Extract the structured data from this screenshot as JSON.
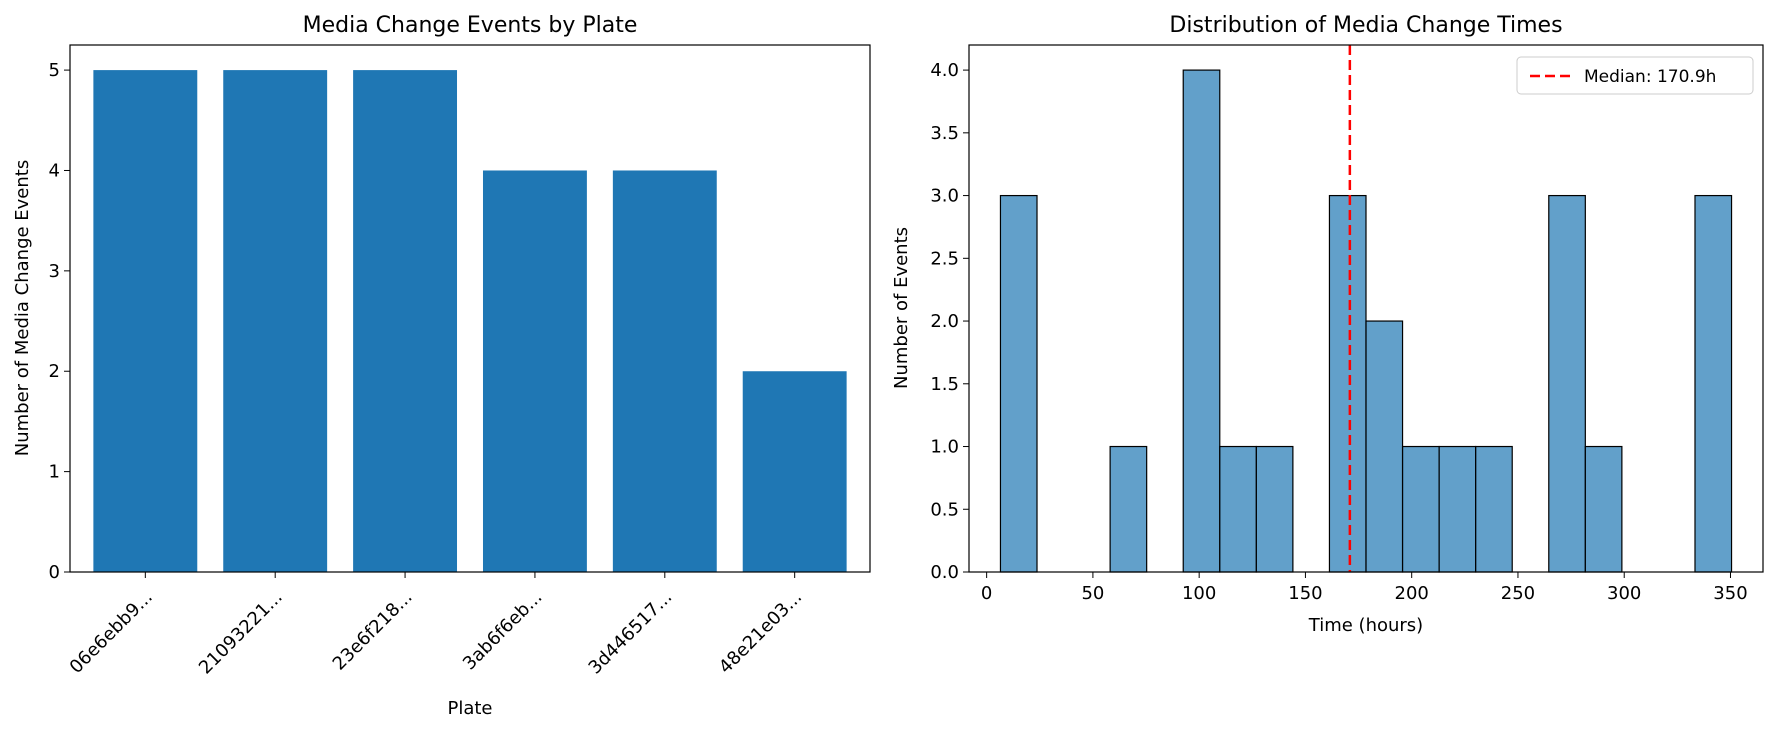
{
  "chart_data": [
    {
      "type": "bar",
      "title": "Media Change Events by Plate",
      "xlabel": "Plate",
      "ylabel": "Number of Media Change Events",
      "categories": [
        "06e6ebb9...",
        "21093221...",
        "23e6f218...",
        "3ab6f6eb...",
        "3d446517...",
        "48e21e03..."
      ],
      "values": [
        5,
        5,
        5,
        4,
        4,
        2
      ],
      "ylim": [
        0,
        5.25
      ],
      "yticks": [
        "0",
        "1",
        "2",
        "3",
        "4",
        "5"
      ],
      "grid": false,
      "colors": {
        "bar": "#1f77b4"
      }
    },
    {
      "type": "bar",
      "subtype": "histogram",
      "title": "Distribution of Media Change Times",
      "xlabel": "Time (hours)",
      "ylabel": "Number of Events",
      "bins": [
        {
          "x0": 6.5,
          "x1": 23.7,
          "count": 3
        },
        {
          "x0": 23.7,
          "x1": 40.9,
          "count": 0
        },
        {
          "x0": 40.9,
          "x1": 58.1,
          "count": 0
        },
        {
          "x0": 58.1,
          "x1": 75.3,
          "count": 1
        },
        {
          "x0": 75.3,
          "x1": 92.5,
          "count": 0
        },
        {
          "x0": 92.5,
          "x1": 109.7,
          "count": 4
        },
        {
          "x0": 109.7,
          "x1": 126.9,
          "count": 1
        },
        {
          "x0": 126.9,
          "x1": 144.1,
          "count": 1
        },
        {
          "x0": 144.1,
          "x1": 161.3,
          "count": 0
        },
        {
          "x0": 161.3,
          "x1": 178.5,
          "count": 3
        },
        {
          "x0": 178.5,
          "x1": 195.7,
          "count": 2
        },
        {
          "x0": 195.7,
          "x1": 212.9,
          "count": 1
        },
        {
          "x0": 212.9,
          "x1": 230.1,
          "count": 1
        },
        {
          "x0": 230.1,
          "x1": 247.3,
          "count": 1
        },
        {
          "x0": 247.3,
          "x1": 264.5,
          "count": 0
        },
        {
          "x0": 264.5,
          "x1": 281.7,
          "count": 3
        },
        {
          "x0": 281.7,
          "x1": 298.9,
          "count": 1
        },
        {
          "x0": 298.9,
          "x1": 316.1,
          "count": 0
        },
        {
          "x0": 316.1,
          "x1": 333.3,
          "count": 0
        },
        {
          "x0": 333.3,
          "x1": 350.5,
          "count": 3
        }
      ],
      "median": 170.9,
      "legend": {
        "label": "Median: 170.9h",
        "placement": "top-right"
      },
      "xlim": [
        -8.3,
        365.3
      ],
      "ylim": [
        0,
        4.2
      ],
      "xticks": [
        "0",
        "50",
        "100",
        "150",
        "200",
        "250",
        "300",
        "350"
      ],
      "yticks": [
        "0.0",
        "0.5",
        "1.0",
        "1.5",
        "2.0",
        "2.5",
        "3.0",
        "3.5",
        "4.0"
      ],
      "grid": false,
      "colors": {
        "bar": "#1f77b4",
        "bar_alpha": 0.7,
        "edge": "#000000",
        "median_line": "#ff0000"
      }
    }
  ]
}
